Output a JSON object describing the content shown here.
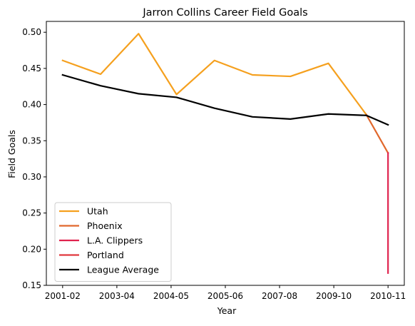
{
  "chart_data": {
    "type": "line",
    "title": "Jarron Collins Career Field Goals",
    "xlabel": "Year",
    "ylabel": "Field Goals",
    "x_tick_labels": [
      "2001-02",
      "2003-04",
      "2004-05",
      "2005-06",
      "2007-08",
      "2009-10",
      "2010-11"
    ],
    "x_tick_positions": [
      0,
      1.4286,
      2.8571,
      4.2857,
      5.7143,
      7.1429,
      8.5714
    ],
    "x_range": [
      -0.4286,
      9.0
    ],
    "ylim": [
      0.15,
      0.515
    ],
    "y_ticks": [
      0.15,
      0.2,
      0.25,
      0.3,
      0.35,
      0.4,
      0.45,
      0.5
    ],
    "y_tick_labels": [
      "0.15",
      "0.20",
      "0.25",
      "0.30",
      "0.35",
      "0.40",
      "0.45",
      "0.50"
    ],
    "grid": false,
    "legend_position": "lower-left",
    "series": [
      {
        "name": "Utah",
        "color": "#f5a01e",
        "points": [
          [
            0,
            0.461
          ],
          [
            1,
            0.442
          ],
          [
            2,
            0.498
          ],
          [
            3,
            0.414
          ],
          [
            4,
            0.461
          ],
          [
            5,
            0.441
          ],
          [
            6,
            0.439
          ],
          [
            7,
            0.457
          ],
          [
            8,
            0.386
          ]
        ]
      },
      {
        "name": "Phoenix",
        "color": "#e1682c",
        "points": [
          [
            8,
            0.386
          ],
          [
            8.5714,
            0.333
          ]
        ]
      },
      {
        "name": "L.A. Clippers",
        "color": "#e0234e",
        "points": [
          [
            8.5714,
            0.333
          ],
          [
            8.5714,
            0.167
          ]
        ]
      },
      {
        "name": "Portland",
        "color": "#e0393e",
        "points": []
      },
      {
        "name": "League Average",
        "color": "#000000",
        "points": [
          [
            0,
            0.441
          ],
          [
            1,
            0.426
          ],
          [
            2,
            0.415
          ],
          [
            3,
            0.41
          ],
          [
            4,
            0.395
          ],
          [
            5,
            0.383
          ],
          [
            6,
            0.38
          ],
          [
            7,
            0.387
          ],
          [
            8,
            0.385
          ],
          [
            8.5714,
            0.372
          ]
        ]
      }
    ]
  }
}
